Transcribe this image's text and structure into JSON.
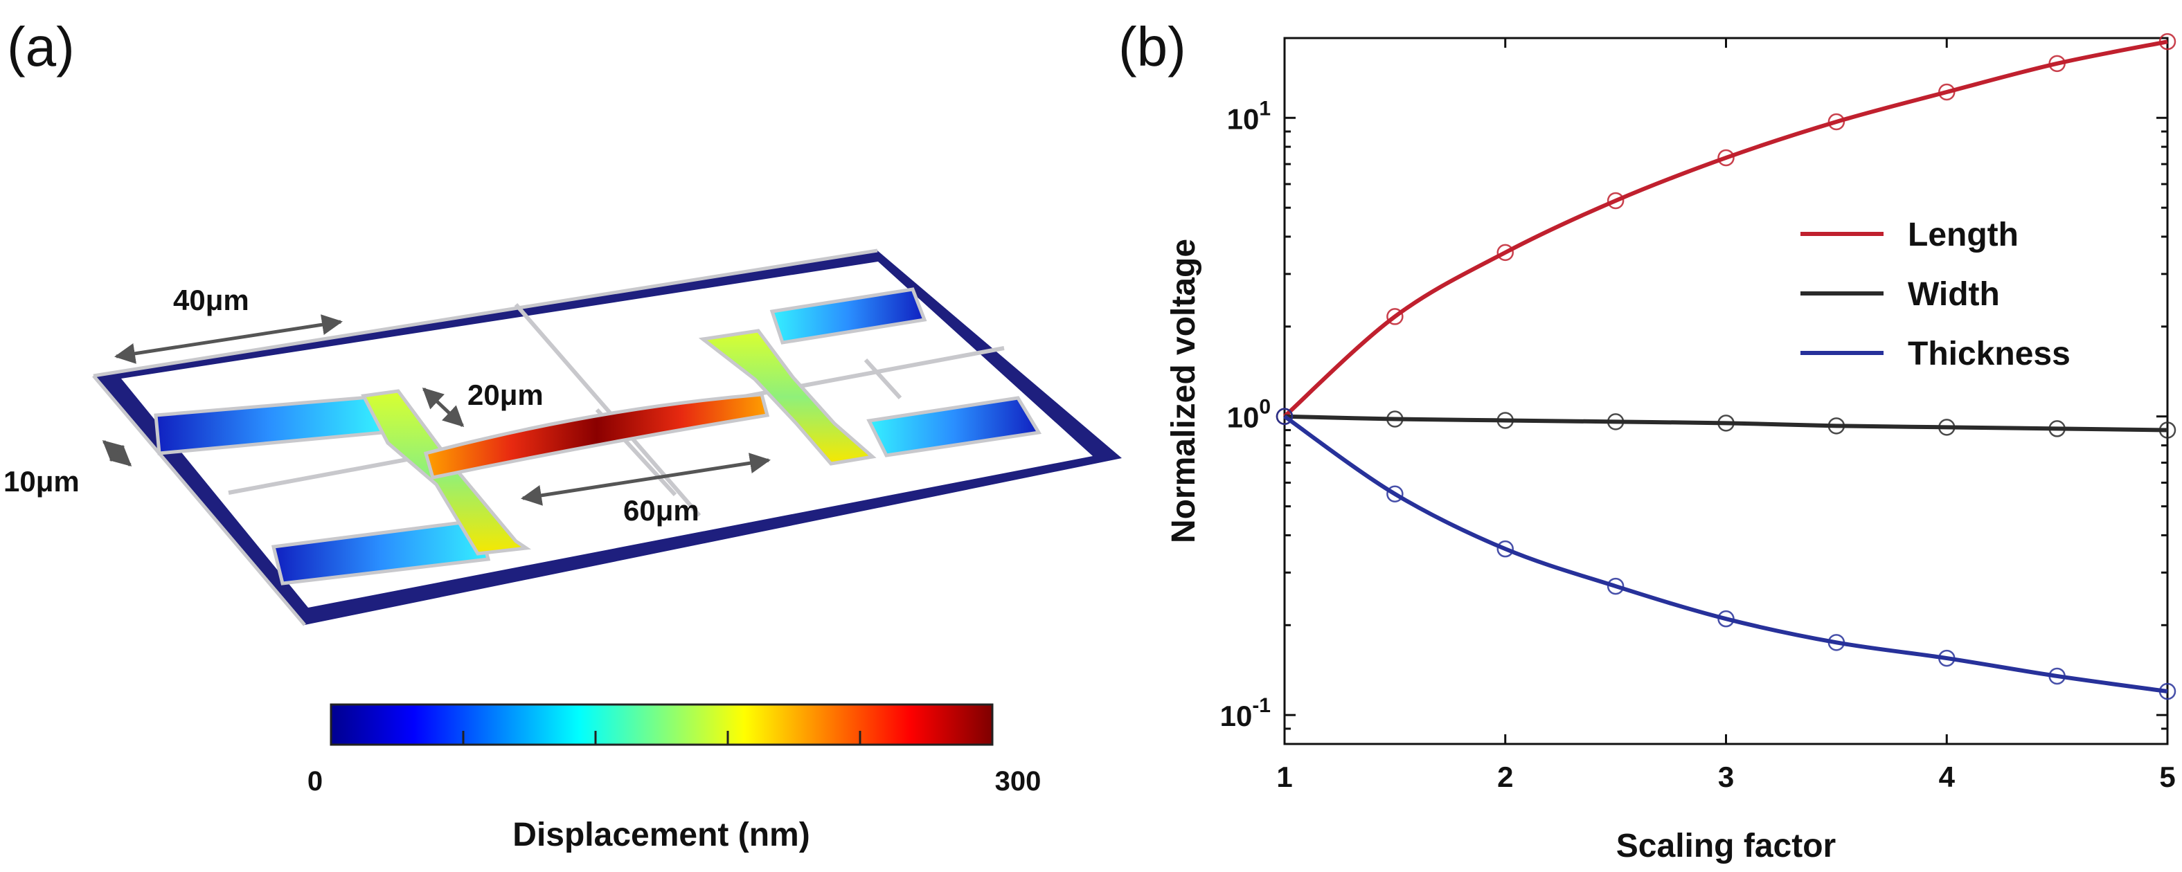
{
  "panel_a": {
    "label": "(a)",
    "dimensions": {
      "length_40": "40μm",
      "gap_20": "20μm",
      "width_10": "10μm",
      "length_60": "60μm"
    },
    "colorbar": {
      "title": "Displacement (nm)",
      "min_label": "0",
      "max_label": "300",
      "min": 0,
      "max": 300,
      "colormap": "jet"
    },
    "colors": {
      "frame": "#1e1f7e",
      "beam_outline": "#c8c8cc"
    }
  },
  "chart_data": {
    "type": "line",
    "panel_label": "(b)",
    "xlabel": "Scaling factor",
    "ylabel": "Normalized voltage",
    "yscale": "log",
    "xlim": [
      1,
      5
    ],
    "ylim": [
      0.08,
      18.5
    ],
    "x_ticks": [
      "1",
      "2",
      "3",
      "4",
      "5"
    ],
    "y_ticks": [
      {
        "value": 10,
        "base": "10",
        "exp": "1"
      },
      {
        "value": 1,
        "base": "10",
        "exp": "0"
      },
      {
        "value": 0.1,
        "base": "10",
        "exp": "-1"
      }
    ],
    "x": [
      1,
      1.5,
      2,
      2.5,
      3,
      3.5,
      4,
      4.5,
      5
    ],
    "series": [
      {
        "name": "Length",
        "color": "#c0202e",
        "values": [
          1.0,
          2.16,
          3.54,
          5.28,
          7.35,
          9.7,
          12.2,
          15.2,
          18.0
        ]
      },
      {
        "name": "Width",
        "color": "#2a2a2a",
        "values": [
          1.0,
          0.98,
          0.97,
          0.96,
          0.95,
          0.93,
          0.92,
          0.91,
          0.9
        ]
      },
      {
        "name": "Thickness",
        "color": "#27319a",
        "values": [
          1.0,
          0.55,
          0.36,
          0.27,
          0.21,
          0.175,
          0.155,
          0.135,
          0.12
        ]
      }
    ],
    "legend_position": "top-right",
    "marker": "open-circle"
  }
}
